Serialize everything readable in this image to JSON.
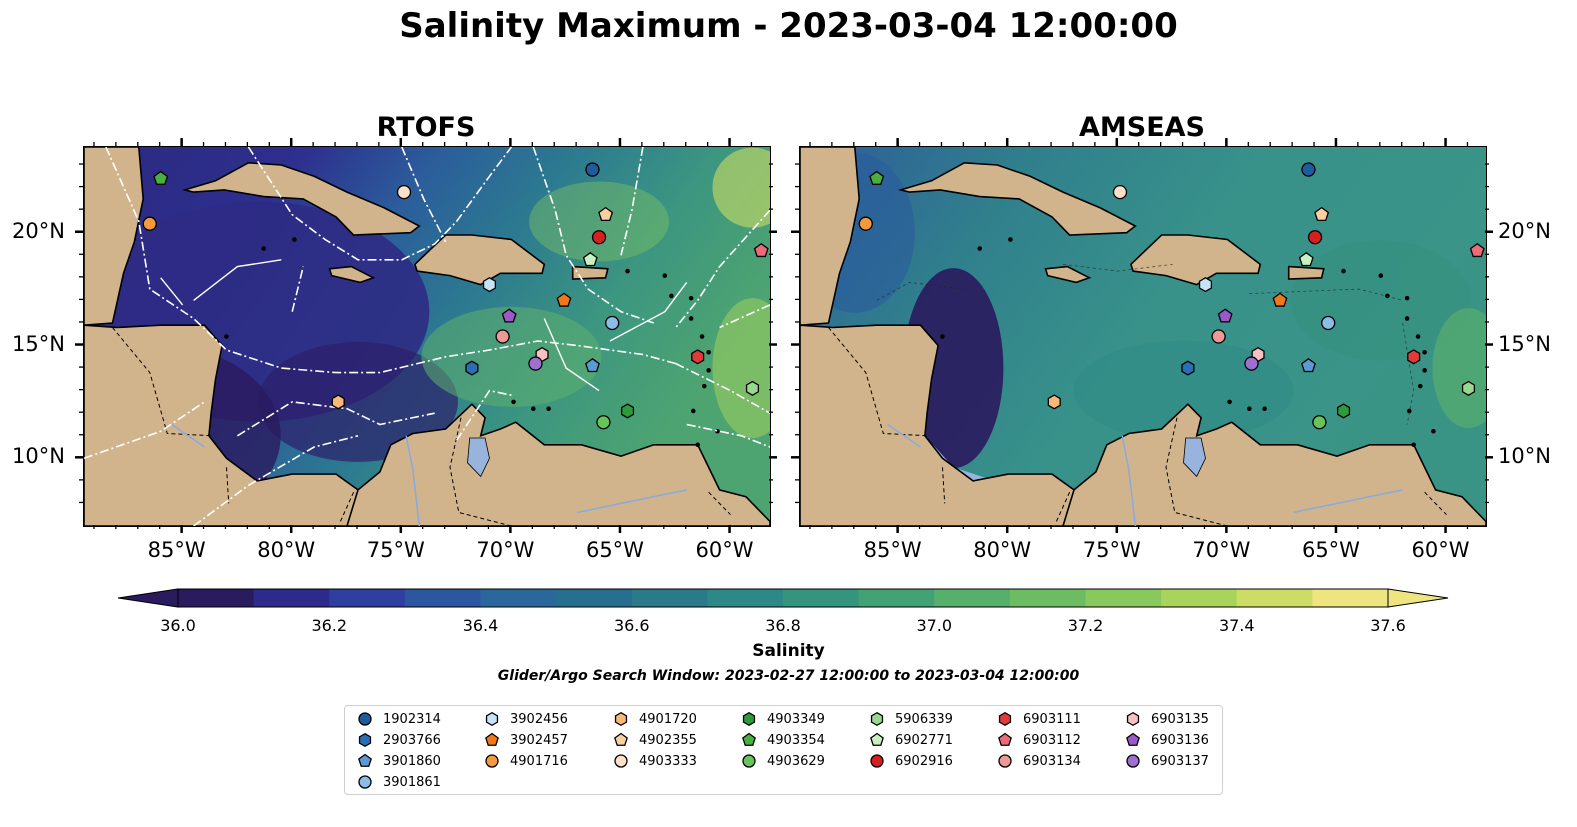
{
  "title": "Salinity Maximum - 2023-03-04 12:00:00",
  "panels": [
    {
      "title": "RTOFS"
    },
    {
      "title": "AMSEAS"
    }
  ],
  "axes": {
    "lon_ticks": [
      "85°W",
      "80°W",
      "75°W",
      "70°W",
      "65°W",
      "60°W"
    ],
    "lat_ticks": [
      "20°N",
      "15°N",
      "10°N"
    ],
    "lon_range": [
      -89.5,
      -58.2
    ],
    "lat_range": [
      7.0,
      23.8
    ]
  },
  "colorbar": {
    "label": "Salinity",
    "ticks": [
      "36.0",
      "36.2",
      "36.4",
      "36.6",
      "36.8",
      "37.0",
      "37.2",
      "37.4",
      "37.6"
    ],
    "vmin": 36.0,
    "vmax": 37.6,
    "extend": "both",
    "colors": [
      "#2a1a5e",
      "#2e2a8c",
      "#2e3fa0",
      "#2c56a0",
      "#2a689c",
      "#286e8e",
      "#2a7a8a",
      "#2e8886",
      "#34947e",
      "#42a276",
      "#56b06c",
      "#6cbc62",
      "#88c85c",
      "#a8d45c",
      "#ccdc64",
      "#eee480"
    ]
  },
  "search_window": "Glider/Argo Search Window: 2023-02-27 12:00:00 to 2023-03-04 12:00:00",
  "land_color": "#d2b48c",
  "lake_color": "#98b4dc",
  "floats": [
    {
      "id": "1902314",
      "marker": "circle",
      "color": "#1f5c9e",
      "lon": -66.3,
      "lat": 22.8
    },
    {
      "id": "2903766",
      "marker": "hexagon",
      "color": "#2a6fb5",
      "lon": -71.8,
      "lat": 14.0
    },
    {
      "id": "3901860",
      "marker": "pentagon",
      "color": "#5c9ad6",
      "lon": -66.3,
      "lat": 14.1
    },
    {
      "id": "3901861",
      "marker": "circle",
      "color": "#8cbce8",
      "lon": -65.4,
      "lat": 16.0
    },
    {
      "id": "3902456",
      "marker": "hexagon",
      "color": "#c4e4f8",
      "lon": -71.0,
      "lat": 17.7
    },
    {
      "id": "3902457",
      "marker": "pentagon",
      "color": "#f07818",
      "lon": -67.6,
      "lat": 17.0
    },
    {
      "id": "4901716",
      "marker": "circle",
      "color": "#f59a3c",
      "lon": -86.5,
      "lat": 20.4
    },
    {
      "id": "4901720",
      "marker": "hexagon",
      "color": "#f8b878",
      "lon": -77.9,
      "lat": 12.5
    },
    {
      "id": "4902355",
      "marker": "pentagon",
      "color": "#fbd0a0",
      "lon": -65.7,
      "lat": 20.8
    },
    {
      "id": "4903333",
      "marker": "circle",
      "color": "#fde0c8",
      "lon": -74.9,
      "lat": 21.8
    },
    {
      "id": "4903349",
      "marker": "hexagon",
      "color": "#2e9a3a",
      "lon": -64.7,
      "lat": 12.1
    },
    {
      "id": "4903354",
      "marker": "pentagon",
      "color": "#48b040",
      "lon": -86.0,
      "lat": 22.4
    },
    {
      "id": "4903629",
      "marker": "circle",
      "color": "#66c45a",
      "lon": -65.8,
      "lat": 11.6
    },
    {
      "id": "5906339",
      "marker": "hexagon",
      "color": "#98d890",
      "lon": -59.0,
      "lat": 13.1
    },
    {
      "id": "6902771",
      "marker": "pentagon",
      "color": "#c8f0c0",
      "lon": -66.4,
      "lat": 18.8
    },
    {
      "id": "6902916",
      "marker": "circle",
      "color": "#d62020",
      "lon": -66.0,
      "lat": 19.8
    },
    {
      "id": "6903111",
      "marker": "hexagon",
      "color": "#e23a3a",
      "lon": -61.5,
      "lat": 14.5
    },
    {
      "id": "6903112",
      "marker": "pentagon",
      "color": "#ee6a78",
      "lon": -58.6,
      "lat": 19.2
    },
    {
      "id": "6903134",
      "marker": "circle",
      "color": "#f09898",
      "lon": -70.4,
      "lat": 15.4
    },
    {
      "id": "6903135",
      "marker": "hexagon",
      "color": "#f8c0c0",
      "lon": -68.6,
      "lat": 14.6
    },
    {
      "id": "6903136",
      "marker": "pentagon",
      "color": "#9a58c8",
      "lon": -70.1,
      "lat": 16.3
    },
    {
      "id": "6903137",
      "marker": "circle",
      "color": "#a070d0",
      "lon": -68.9,
      "lat": 14.2
    }
  ]
}
